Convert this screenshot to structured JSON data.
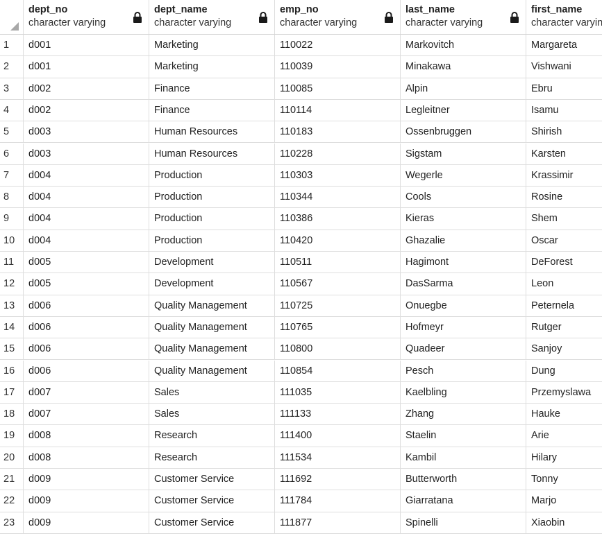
{
  "columns": [
    {
      "name": "dept_no",
      "type": "character varying",
      "locked": true
    },
    {
      "name": "dept_name",
      "type": "character varying",
      "locked": true
    },
    {
      "name": "emp_no",
      "type": "character varying",
      "locked": true
    },
    {
      "name": "last_name",
      "type": "character varying",
      "locked": true
    },
    {
      "name": "first_name",
      "type": "character varying",
      "locked": false
    }
  ],
  "rows": [
    {
      "n": "1",
      "dept_no": "d001",
      "dept_name": "Marketing",
      "emp_no": "110022",
      "last_name": "Markovitch",
      "first_name": "Margareta"
    },
    {
      "n": "2",
      "dept_no": "d001",
      "dept_name": "Marketing",
      "emp_no": "110039",
      "last_name": "Minakawa",
      "first_name": "Vishwani"
    },
    {
      "n": "3",
      "dept_no": "d002",
      "dept_name": "Finance",
      "emp_no": "110085",
      "last_name": "Alpin",
      "first_name": "Ebru"
    },
    {
      "n": "4",
      "dept_no": "d002",
      "dept_name": "Finance",
      "emp_no": "110114",
      "last_name": "Legleitner",
      "first_name": "Isamu"
    },
    {
      "n": "5",
      "dept_no": "d003",
      "dept_name": "Human Resources",
      "emp_no": "110183",
      "last_name": "Ossenbruggen",
      "first_name": "Shirish"
    },
    {
      "n": "6",
      "dept_no": "d003",
      "dept_name": "Human Resources",
      "emp_no": "110228",
      "last_name": "Sigstam",
      "first_name": "Karsten"
    },
    {
      "n": "7",
      "dept_no": "d004",
      "dept_name": "Production",
      "emp_no": "110303",
      "last_name": "Wegerle",
      "first_name": "Krassimir"
    },
    {
      "n": "8",
      "dept_no": "d004",
      "dept_name": "Production",
      "emp_no": "110344",
      "last_name": "Cools",
      "first_name": "Rosine"
    },
    {
      "n": "9",
      "dept_no": "d004",
      "dept_name": "Production",
      "emp_no": "110386",
      "last_name": "Kieras",
      "first_name": "Shem"
    },
    {
      "n": "10",
      "dept_no": "d004",
      "dept_name": "Production",
      "emp_no": "110420",
      "last_name": "Ghazalie",
      "first_name": "Oscar"
    },
    {
      "n": "11",
      "dept_no": "d005",
      "dept_name": "Development",
      "emp_no": "110511",
      "last_name": "Hagimont",
      "first_name": "DeForest"
    },
    {
      "n": "12",
      "dept_no": "d005",
      "dept_name": "Development",
      "emp_no": "110567",
      "last_name": "DasSarma",
      "first_name": "Leon"
    },
    {
      "n": "13",
      "dept_no": "d006",
      "dept_name": "Quality Management",
      "emp_no": "110725",
      "last_name": "Onuegbe",
      "first_name": "Peternela"
    },
    {
      "n": "14",
      "dept_no": "d006",
      "dept_name": "Quality Management",
      "emp_no": "110765",
      "last_name": "Hofmeyr",
      "first_name": "Rutger"
    },
    {
      "n": "15",
      "dept_no": "d006",
      "dept_name": "Quality Management",
      "emp_no": "110800",
      "last_name": "Quadeer",
      "first_name": "Sanjoy"
    },
    {
      "n": "16",
      "dept_no": "d006",
      "dept_name": "Quality Management",
      "emp_no": "110854",
      "last_name": "Pesch",
      "first_name": "Dung"
    },
    {
      "n": "17",
      "dept_no": "d007",
      "dept_name": "Sales",
      "emp_no": "111035",
      "last_name": "Kaelbling",
      "first_name": "Przemyslawa"
    },
    {
      "n": "18",
      "dept_no": "d007",
      "dept_name": "Sales",
      "emp_no": "111133",
      "last_name": "Zhang",
      "first_name": "Hauke"
    },
    {
      "n": "19",
      "dept_no": "d008",
      "dept_name": "Research",
      "emp_no": "111400",
      "last_name": "Staelin",
      "first_name": "Arie"
    },
    {
      "n": "20",
      "dept_no": "d008",
      "dept_name": "Research",
      "emp_no": "111534",
      "last_name": "Kambil",
      "first_name": "Hilary"
    },
    {
      "n": "21",
      "dept_no": "d009",
      "dept_name": "Customer Service",
      "emp_no": "111692",
      "last_name": "Butterworth",
      "first_name": "Tonny"
    },
    {
      "n": "22",
      "dept_no": "d009",
      "dept_name": "Customer Service",
      "emp_no": "111784",
      "last_name": "Giarratana",
      "first_name": "Marjo"
    },
    {
      "n": "23",
      "dept_no": "d009",
      "dept_name": "Customer Service",
      "emp_no": "111877",
      "last_name": "Spinelli",
      "first_name": "Xiaobin"
    }
  ]
}
